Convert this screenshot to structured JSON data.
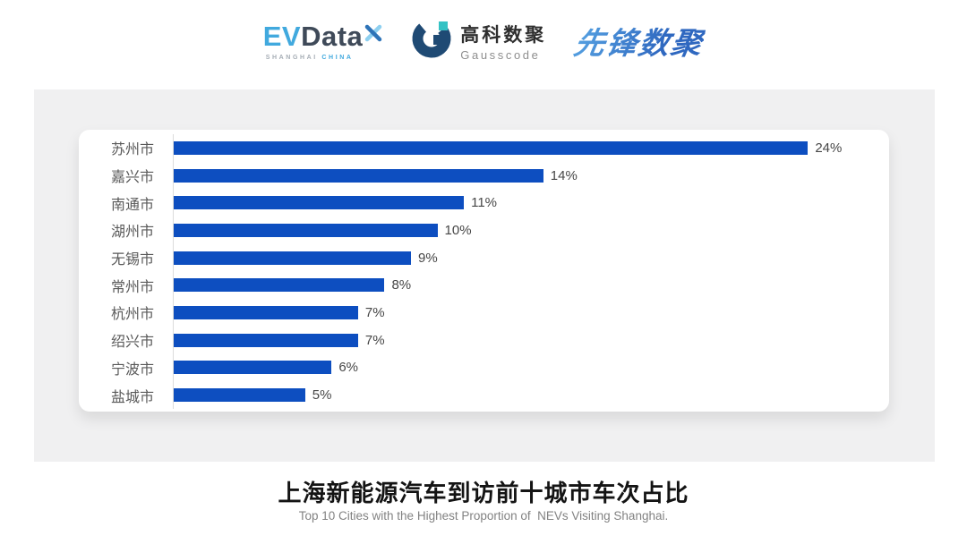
{
  "header": {
    "logos": {
      "evdata": {
        "ev": "EV",
        "data": "Data",
        "sub_left": "SHANGHAI",
        "sub_right": "CHINA"
      },
      "gausscode": {
        "cn": "高科数聚",
        "en": "Gausscode"
      },
      "xianfeng": {
        "text": "先锋数聚"
      }
    }
  },
  "chart_data": {
    "type": "bar",
    "orientation": "horizontal",
    "categories": [
      "苏州市",
      "嘉兴市",
      "南通市",
      "湖州市",
      "无锡市",
      "常州市",
      "杭州市",
      "绍兴市",
      "宁波市",
      "盐城市"
    ],
    "values": [
      24,
      14,
      11,
      10,
      9,
      8,
      7,
      7,
      6,
      5
    ],
    "value_labels": [
      "24%",
      "14%",
      "11%",
      "10%",
      "9%",
      "8%",
      "7%",
      "7%",
      "6%",
      "5%"
    ],
    "title": "上海新能源汽车到访前十城市车次占比",
    "subtitle": "Top 10 Cities with the Highest Proportion of  NEVs Visiting Shanghai.",
    "xlabel": "",
    "ylabel": "",
    "xlim": [
      0,
      27
    ],
    "grid": false,
    "legend": "none",
    "bar_color": "#0d4ec0",
    "label_color": "#595959",
    "value_color": "#474747"
  },
  "colors": {
    "panel_bg": "#f0f0f1",
    "card_bg": "#ffffff",
    "evdata_blue": "#41a9de",
    "evdata_dark": "#3f4a59",
    "gausscode_navy": "#1f4a74",
    "gausscode_teal": "#35c2c4",
    "xianfeng_blue": "#3a7ccb"
  }
}
